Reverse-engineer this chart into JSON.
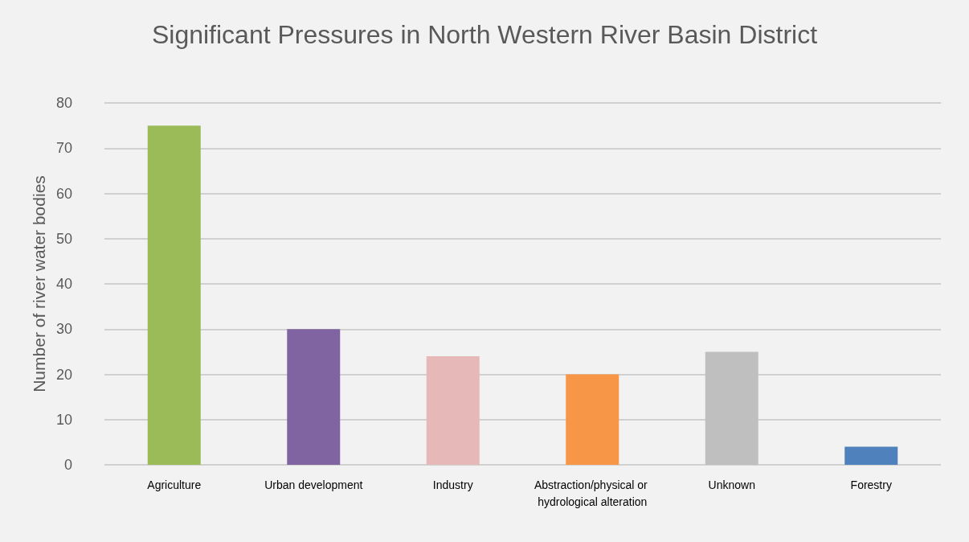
{
  "chart_data": {
    "type": "bar",
    "title": "Significant Pressures in North Western River Basin District",
    "ylabel": "Number of river water bodies",
    "categories": [
      "Agriculture",
      "Urban development",
      "Industry",
      "Abstraction/physical or hydrological alteration",
      "Unknown",
      "Forestry"
    ],
    "values": [
      75,
      30,
      24,
      20,
      25,
      4
    ],
    "colors": [
      "#9bbb59",
      "#8064a2",
      "#e6b9b8",
      "#f79646",
      "#bfbfbf",
      "#4f81bd"
    ],
    "ylim": [
      0,
      80
    ],
    "yticks": [
      0,
      10,
      20,
      30,
      40,
      50,
      60,
      70,
      80
    ],
    "grid": "y"
  }
}
